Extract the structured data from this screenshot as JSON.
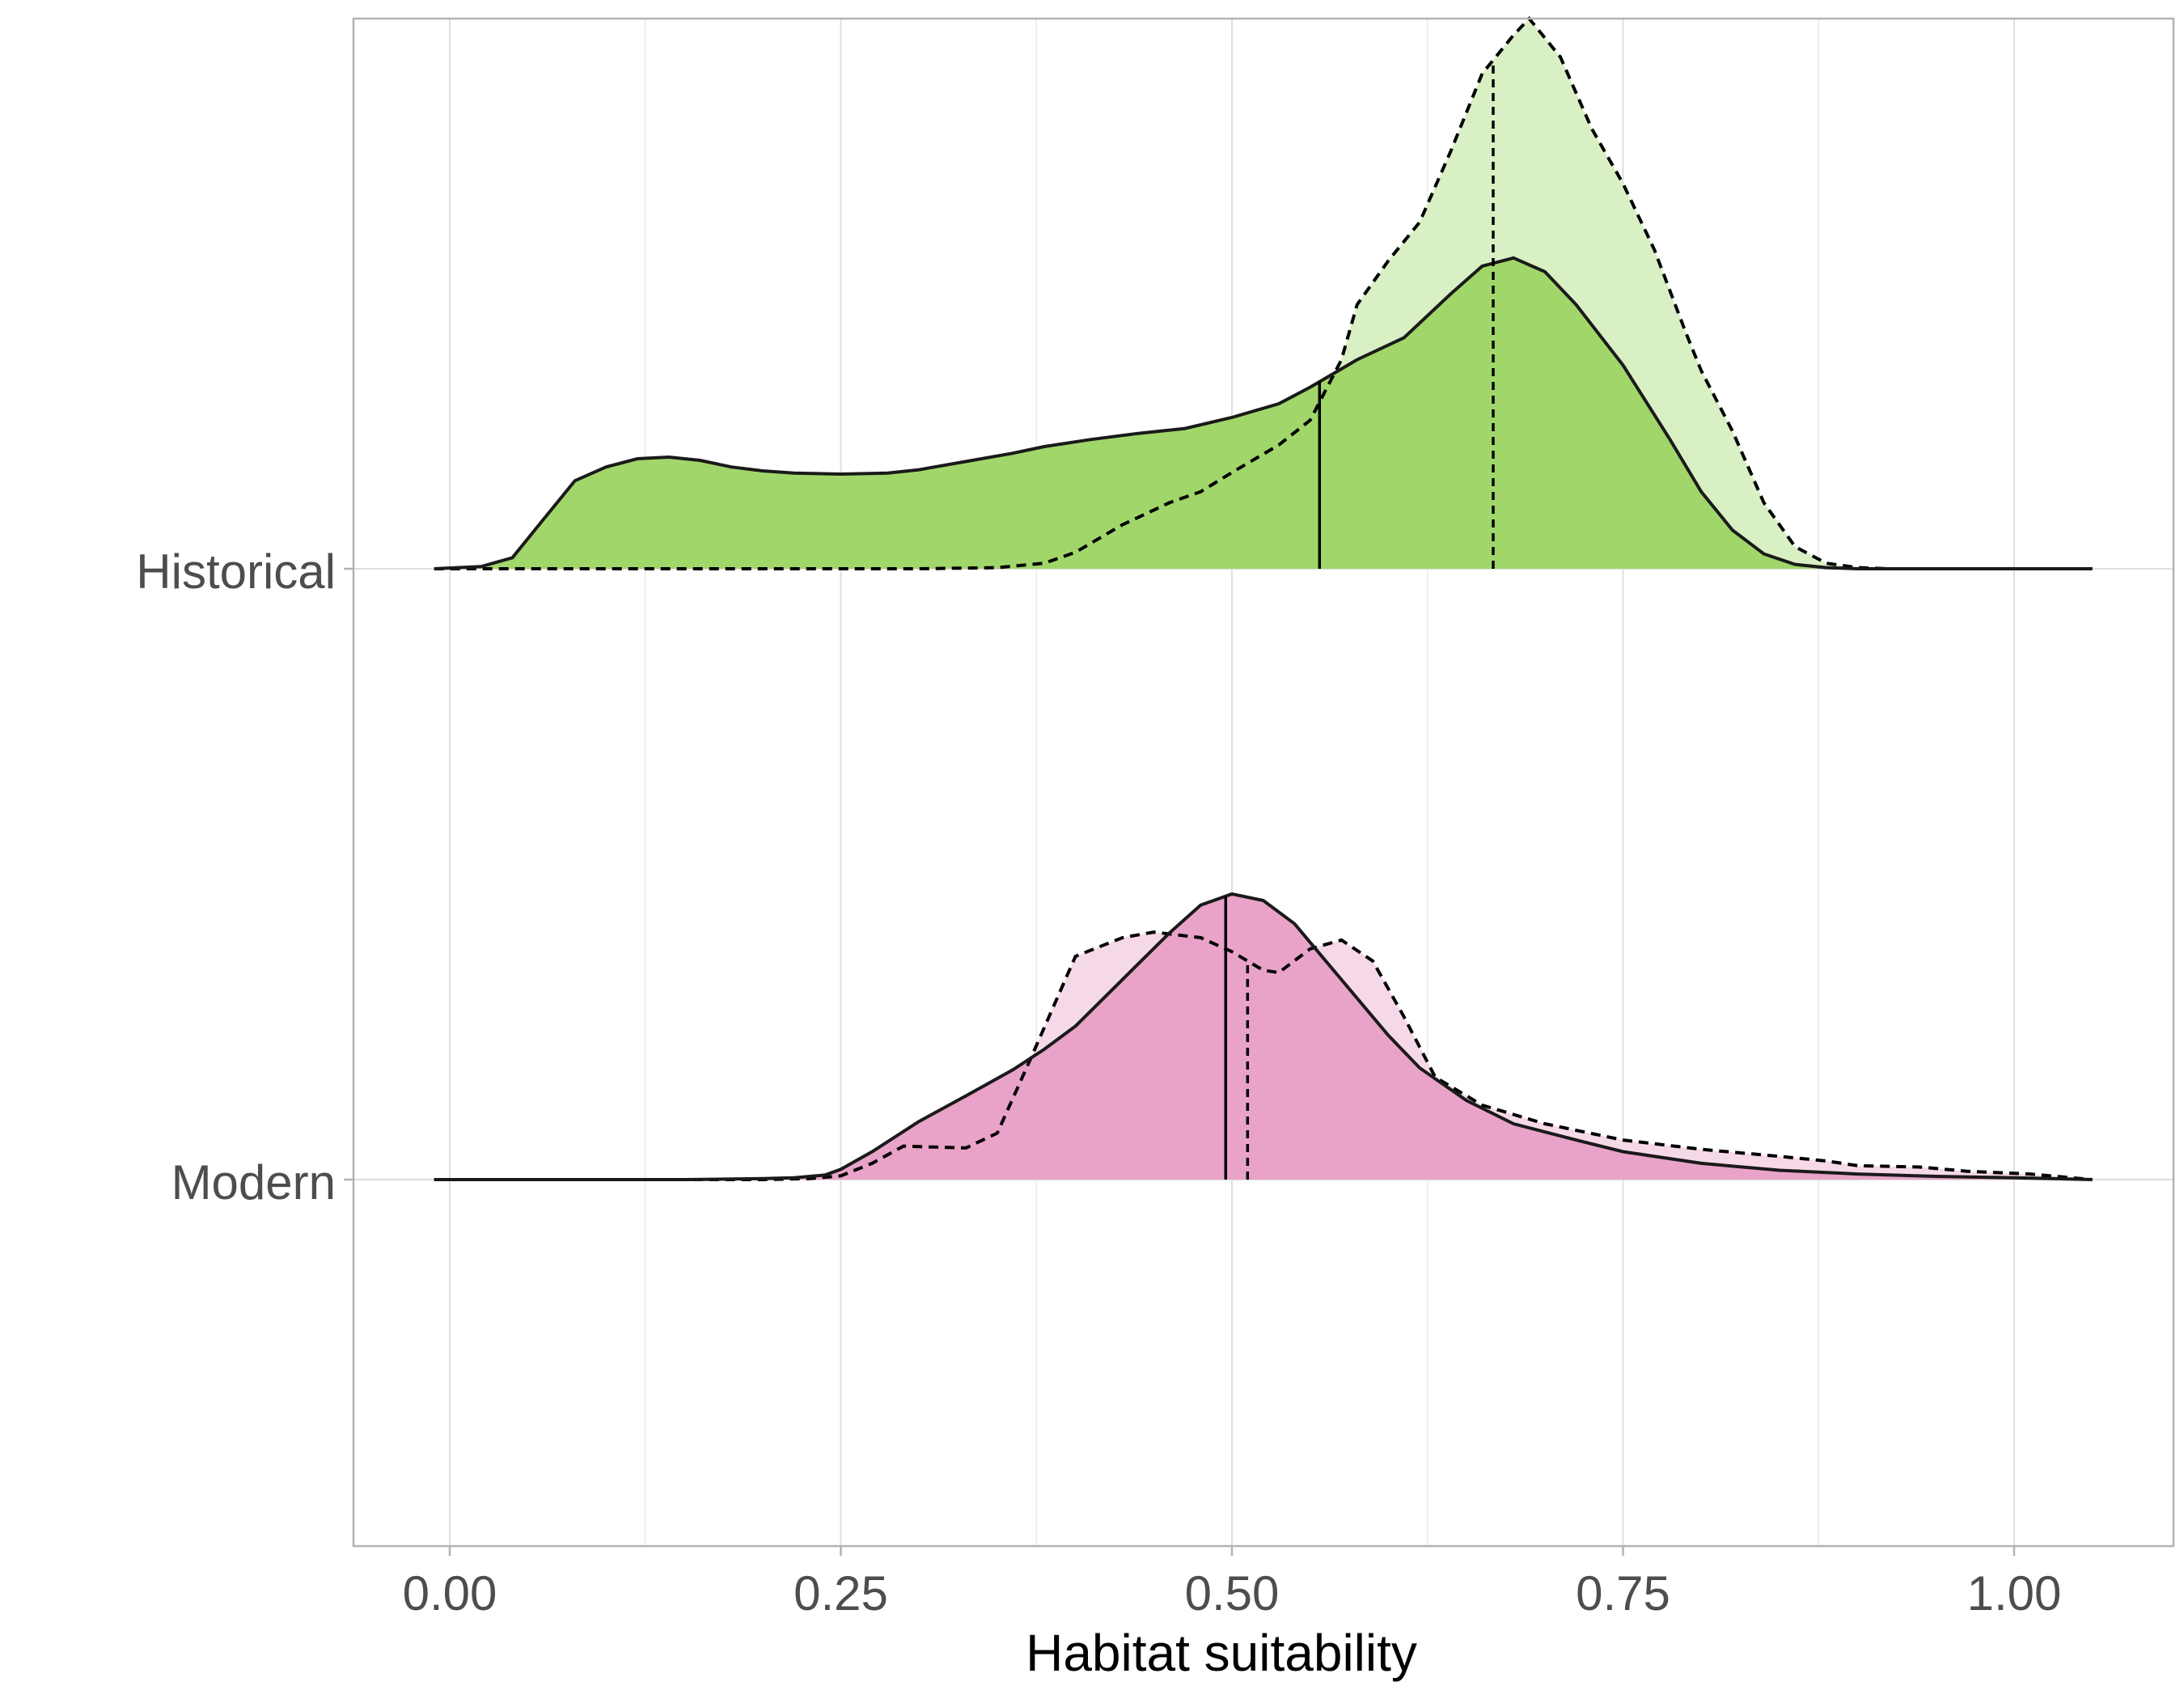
{
  "chart_data": {
    "type": "ridgeline-density",
    "xlabel": "Habitat suitability",
    "xlim": [
      -0.06,
      1.105
    ],
    "x_ticks": [
      0,
      0.25,
      0.5,
      0.75,
      1
    ],
    "x_tick_labels": [
      "0.00",
      "0.25",
      "0.50",
      "0.75",
      "1.00"
    ],
    "x_minor_ticks": [
      0.125,
      0.375,
      0.625,
      0.875
    ],
    "categories": [
      "Historical",
      "Modern"
    ],
    "grid": true,
    "legend": "none",
    "ridges": [
      {
        "category": "Historical",
        "fill_solid": "#a1d76a",
        "fill_dashed": "#d9f0c5",
        "solid_median": 0.556,
        "dashed_median": 0.667,
        "solid_curve": [
          [
            -0.01,
            0
          ],
          [
            0.02,
            0.004
          ],
          [
            0.04,
            0.02
          ],
          [
            0.06,
            0.09
          ],
          [
            0.08,
            0.16
          ],
          [
            0.1,
            0.185
          ],
          [
            0.12,
            0.2
          ],
          [
            0.14,
            0.203
          ],
          [
            0.16,
            0.197
          ],
          [
            0.18,
            0.185
          ],
          [
            0.2,
            0.178
          ],
          [
            0.22,
            0.174
          ],
          [
            0.25,
            0.172
          ],
          [
            0.28,
            0.174
          ],
          [
            0.3,
            0.18
          ],
          [
            0.33,
            0.195
          ],
          [
            0.36,
            0.21
          ],
          [
            0.38,
            0.222
          ],
          [
            0.41,
            0.235
          ],
          [
            0.44,
            0.246
          ],
          [
            0.47,
            0.255
          ],
          [
            0.5,
            0.275
          ],
          [
            0.53,
            0.3
          ],
          [
            0.55,
            0.33
          ],
          [
            0.58,
            0.38
          ],
          [
            0.61,
            0.42
          ],
          [
            0.64,
            0.5
          ],
          [
            0.66,
            0.55
          ],
          [
            0.68,
            0.565
          ],
          [
            0.7,
            0.54
          ],
          [
            0.72,
            0.48
          ],
          [
            0.75,
            0.37
          ],
          [
            0.78,
            0.235
          ],
          [
            0.8,
            0.14
          ],
          [
            0.82,
            0.07
          ],
          [
            0.84,
            0.027
          ],
          [
            0.86,
            0.008
          ],
          [
            0.88,
            0.002
          ],
          [
            0.9,
            0
          ],
          [
            1.05,
            0
          ]
        ],
        "dashed_curve": [
          [
            -0.01,
            0
          ],
          [
            0.3,
            0
          ],
          [
            0.35,
            0.002
          ],
          [
            0.38,
            0.01
          ],
          [
            0.4,
            0.03
          ],
          [
            0.43,
            0.08
          ],
          [
            0.46,
            0.12
          ],
          [
            0.48,
            0.14
          ],
          [
            0.5,
            0.175
          ],
          [
            0.53,
            0.225
          ],
          [
            0.55,
            0.27
          ],
          [
            0.57,
            0.38
          ],
          [
            0.58,
            0.48
          ],
          [
            0.6,
            0.56
          ],
          [
            0.62,
            0.63
          ],
          [
            0.64,
            0.76
          ],
          [
            0.66,
            0.9
          ],
          [
            0.68,
            0.97
          ],
          [
            0.69,
            1
          ],
          [
            0.71,
            0.93
          ],
          [
            0.73,
            0.8
          ],
          [
            0.75,
            0.7
          ],
          [
            0.77,
            0.58
          ],
          [
            0.79,
            0.43
          ],
          [
            0.8,
            0.36
          ],
          [
            0.82,
            0.25
          ],
          [
            0.84,
            0.12
          ],
          [
            0.86,
            0.04
          ],
          [
            0.88,
            0.01
          ],
          [
            0.9,
            0.002
          ],
          [
            0.92,
            0
          ],
          [
            1.05,
            0
          ]
        ]
      },
      {
        "category": "Modern",
        "fill_solid": "#e9a3c9",
        "fill_dashed": "#f6d9e8",
        "solid_median": 0.496,
        "dashed_median": 0.51,
        "solid_curve": [
          [
            -0.01,
            0
          ],
          [
            0.15,
            0
          ],
          [
            0.2,
            0.002
          ],
          [
            0.22,
            0.004
          ],
          [
            0.24,
            0.01
          ],
          [
            0.25,
            0.022
          ],
          [
            0.27,
            0.06
          ],
          [
            0.3,
            0.125
          ],
          [
            0.33,
            0.18
          ],
          [
            0.36,
            0.236
          ],
          [
            0.38,
            0.28
          ],
          [
            0.4,
            0.33
          ],
          [
            0.43,
            0.43
          ],
          [
            0.46,
            0.53
          ],
          [
            0.48,
            0.59
          ],
          [
            0.5,
            0.614
          ],
          [
            0.52,
            0.6
          ],
          [
            0.54,
            0.55
          ],
          [
            0.56,
            0.47
          ],
          [
            0.58,
            0.39
          ],
          [
            0.6,
            0.31
          ],
          [
            0.62,
            0.24
          ],
          [
            0.65,
            0.17
          ],
          [
            0.68,
            0.12
          ],
          [
            0.72,
            0.085
          ],
          [
            0.75,
            0.06
          ],
          [
            0.8,
            0.035
          ],
          [
            0.85,
            0.02
          ],
          [
            0.9,
            0.012
          ],
          [
            0.95,
            0.007
          ],
          [
            1,
            0.004
          ],
          [
            1.05,
            0
          ]
        ],
        "dashed_curve": [
          [
            -0.01,
            0
          ],
          [
            0.2,
            0
          ],
          [
            0.23,
            0.002
          ],
          [
            0.25,
            0.008
          ],
          [
            0.27,
            0.035
          ],
          [
            0.29,
            0.072
          ],
          [
            0.31,
            0.07
          ],
          [
            0.33,
            0.068
          ],
          [
            0.35,
            0.1
          ],
          [
            0.37,
            0.25
          ],
          [
            0.4,
            0.48
          ],
          [
            0.43,
            0.52
          ],
          [
            0.45,
            0.532
          ],
          [
            0.48,
            0.52
          ],
          [
            0.5,
            0.49
          ],
          [
            0.52,
            0.45
          ],
          [
            0.53,
            0.445
          ],
          [
            0.55,
            0.496
          ],
          [
            0.57,
            0.515
          ],
          [
            0.59,
            0.47
          ],
          [
            0.61,
            0.35
          ],
          [
            0.63,
            0.22
          ],
          [
            0.66,
            0.16
          ],
          [
            0.7,
            0.12
          ],
          [
            0.75,
            0.085
          ],
          [
            0.8,
            0.065
          ],
          [
            0.85,
            0.05
          ],
          [
            0.88,
            0.04
          ],
          [
            0.9,
            0.03
          ],
          [
            0.94,
            0.027
          ],
          [
            0.97,
            0.018
          ],
          [
            1.01,
            0.012
          ],
          [
            1.05,
            0
          ]
        ]
      }
    ]
  }
}
